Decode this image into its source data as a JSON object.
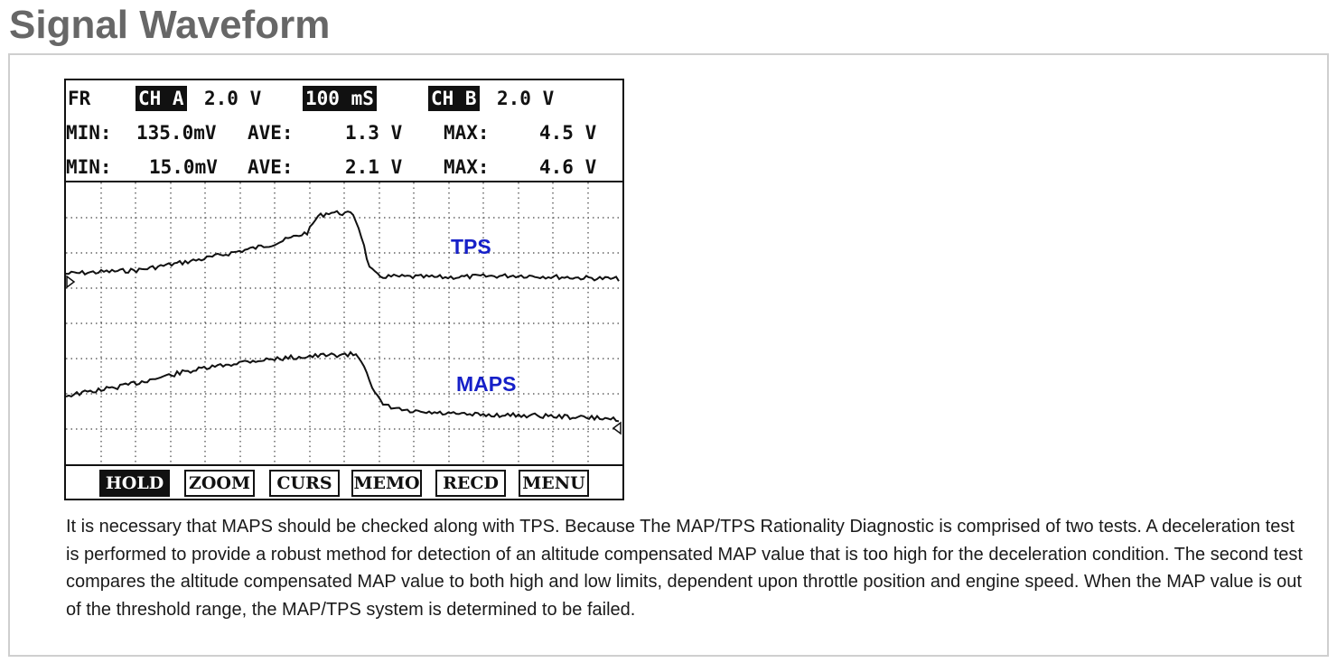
{
  "page": {
    "title": "Signal Waveform"
  },
  "scope": {
    "header": {
      "mode": "FR",
      "channel_a_label": "CH A",
      "channel_a_scale": "2.0 V",
      "timebase": "100 mS",
      "channel_b_label": "CH B",
      "channel_b_scale": "2.0 V",
      "row1": {
        "min_label": "MIN:",
        "min_value": "135.0mV",
        "ave_label": "AVE:",
        "ave_value": "1.3 V",
        "max_label": "MAX:",
        "max_value": "4.5 V"
      },
      "row2": {
        "min_label": "MIN:",
        "min_value": "15.0mV",
        "ave_label": "AVE:",
        "ave_value": "2.1 V",
        "max_label": "MAX:",
        "max_value": "4.6 V"
      }
    },
    "trace_labels": {
      "tps": "TPS",
      "maps": "MAPS"
    },
    "softkeys": [
      {
        "label": "HOLD",
        "active": true
      },
      {
        "label": "ZOOM",
        "active": false
      },
      {
        "label": "CURS",
        "active": false
      },
      {
        "label": "MEMO",
        "active": false
      },
      {
        "label": "RECD",
        "active": false
      },
      {
        "label": "MENU",
        "active": false
      }
    ],
    "colors": {
      "trace": "#111111",
      "label": "#1620c8",
      "grid": "#333333"
    }
  },
  "description": "It is necessary that MAPS should be checked along with TPS.  Because The MAP/TPS Rationality Diagnostic is comprised of two tests. A deceleration test is performed to provide a robust method for detection of an altitude compensated MAP value that is too high for the deceleration condition. The second test compares the altitude compensated MAP value to both high and low limits, dependent upon throttle position and engine speed. When the MAP value is out of the threshold range, the MAP/TPS system is determined to be failed."
}
